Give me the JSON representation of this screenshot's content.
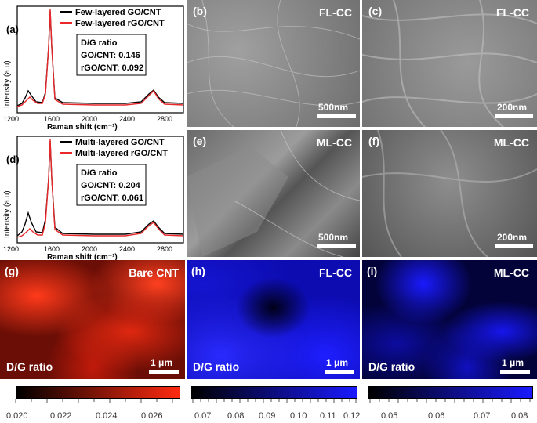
{
  "raman": [
    {
      "panel_label": "(a)",
      "legend": [
        "Few-layered GO/CNT",
        "Few-layered rGO/CNT"
      ],
      "box_title": "D/G ratio",
      "box_lines": [
        "GO/CNT: 0.146",
        "rGO/CNT: 0.092"
      ],
      "ylabel": "Intensity (a.u)",
      "xlabel": "Raman shift (cm⁻¹)",
      "xticks": [
        "1200",
        "1600",
        "2000",
        "2400",
        "2800"
      ]
    },
    {
      "panel_label": "(d)",
      "legend": [
        "Multi-layered GO/CNT",
        "Multi-layered rGO/CNT"
      ],
      "box_title": "D/G ratio",
      "box_lines": [
        "GO/CNT: 0.204",
        "rGO/CNT: 0.061"
      ],
      "ylabel": "Intensity (a.u)",
      "xlabel": "Raman shift (cm⁻¹)",
      "xticks": [
        "1200",
        "1600",
        "2000",
        "2400",
        "2800"
      ]
    }
  ],
  "sem": [
    {
      "panel_label": "(b)",
      "tag": "FL-CC",
      "scale": "500nm"
    },
    {
      "panel_label": "(c)",
      "tag": "FL-CC",
      "scale": "200nm"
    },
    {
      "panel_label": "(e)",
      "tag": "ML-CC",
      "scale": "500nm"
    },
    {
      "panel_label": "(f)",
      "tag": "ML-CC",
      "scale": "200nm"
    }
  ],
  "maps": [
    {
      "panel_label": "(g)",
      "tag": "Bare CNT",
      "scale": "1 μm",
      "dg": "D/G ratio",
      "color": "#ff2a10",
      "cbar_ticks": [
        "0.020",
        "0.022",
        "0.024",
        "0.026"
      ]
    },
    {
      "panel_label": "(h)",
      "tag": "FL-CC",
      "scale": "1 μm",
      "dg": "D/G ratio",
      "color": "#1a1aff",
      "cbar_ticks": [
        "0.07",
        "0.08",
        "0.09",
        "0.10",
        "0.11",
        "0.12"
      ]
    },
    {
      "panel_label": "(i)",
      "tag": "ML-CC",
      "scale": "1 μm",
      "dg": "D/G ratio",
      "color": "#1a1aff",
      "cbar_ticks": [
        "0.05",
        "0.06",
        "0.07",
        "0.08"
      ]
    }
  ]
}
